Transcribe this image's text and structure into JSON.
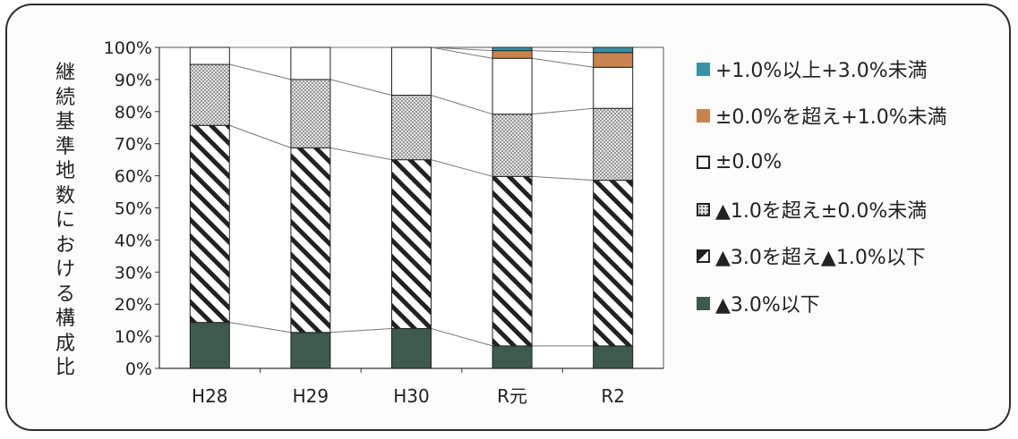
{
  "chart_data": {
    "type": "bar",
    "stacked": true,
    "percent": true,
    "ylabel": "継続基準地数における構成比",
    "ylim": [
      0,
      100
    ],
    "yticks": [
      "0%",
      "10%",
      "20%",
      "30%",
      "40%",
      "50%",
      "60%",
      "70%",
      "80%",
      "90%",
      "100%"
    ],
    "categories": [
      "H28",
      "H29",
      "H30",
      "R元",
      "R2"
    ],
    "series": [
      {
        "name": "▲3.0%以下",
        "values": [
          14.3,
          11.2,
          12.4,
          7.0,
          7.0
        ],
        "color": "#3d5a4c",
        "pattern": "solid"
      },
      {
        "name": "▲3.0を超え▲1.0%以下",
        "values": [
          61.4,
          57.5,
          52.6,
          52.8,
          51.6
        ],
        "color": "#222222",
        "pattern": "diagonal-stripes"
      },
      {
        "name": "▲1.0を超え±0.0%未満",
        "values": [
          19.0,
          21.3,
          20.1,
          19.4,
          22.4
        ],
        "color": "#888888",
        "pattern": "dots"
      },
      {
        "name": "±0.0%",
        "values": [
          5.3,
          10.0,
          14.9,
          17.4,
          12.8
        ],
        "color": "#ffffff",
        "pattern": "none"
      },
      {
        "name": "±0.0%を超え+1.0%未満",
        "values": [
          0,
          0,
          0,
          2.4,
          4.6
        ],
        "color": "#c8834f",
        "pattern": "solid"
      },
      {
        "name": "+1.0%以上+3.0%未満",
        "values": [
          0,
          0,
          0,
          1.0,
          1.6
        ],
        "color": "#3a92a8",
        "pattern": "solid"
      }
    ],
    "legend": [
      "+1.0%以上+3.0%未満",
      "±0.0%を超え+1.0%未満",
      "±0.0%",
      "▲1.0を超え±0.0%未満",
      "▲3.0を超え▲1.0%以下",
      "▲3.0%以下"
    ],
    "legend_position": "right",
    "grid": false
  }
}
